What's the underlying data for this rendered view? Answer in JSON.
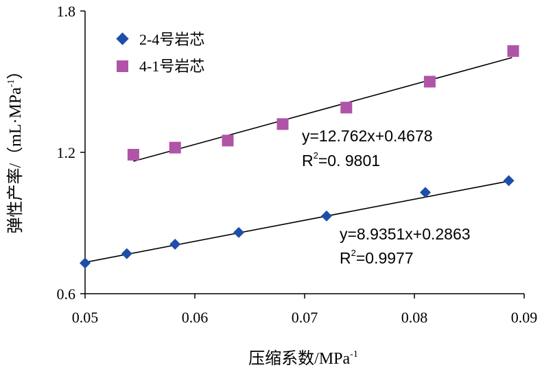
{
  "chart_data": {
    "type": "scatter",
    "xlabel": "压缩系数/MPa",
    "xlabel_sup": "-1",
    "ylabel": "弹性产率/（mL·MPa",
    "ylabel_sup": "-1",
    "ylabel_close": "）",
    "xlim": [
      0.05,
      0.09
    ],
    "ylim": [
      0.6,
      1.8
    ],
    "x_ticks": [
      0.05,
      0.06,
      0.07,
      0.08,
      0.09
    ],
    "x_tick_labels": [
      "0.05",
      "0.06",
      "0.07",
      "0.08",
      "0.09"
    ],
    "y_ticks": [
      0.6,
      1.2,
      1.8
    ],
    "y_tick_labels": [
      "0.6",
      "1.2",
      "1.8"
    ],
    "series": [
      {
        "name": "2-4号岩芯",
        "marker": "diamond",
        "color": "#1F4EA8",
        "x": [
          0.05,
          0.0538,
          0.0582,
          0.064,
          0.072,
          0.081,
          0.0886
        ],
        "y": [
          0.73,
          0.77,
          0.81,
          0.86,
          0.93,
          1.03,
          1.08
        ],
        "fit": {
          "slope": 8.9351,
          "intercept": 0.2863,
          "x_range": [
            0.05,
            0.0886
          ]
        },
        "equation": "y=8.9351x+0.2863",
        "r2_prefix": "R",
        "r2_value": "=0.9977"
      },
      {
        "name": "4-1号岩芯",
        "marker": "square",
        "color": "#B054A8",
        "x": [
          0.0544,
          0.0582,
          0.063,
          0.068,
          0.0738,
          0.0814,
          0.089
        ],
        "y": [
          1.19,
          1.22,
          1.25,
          1.32,
          1.39,
          1.5,
          1.63
        ],
        "fit": {
          "slope": 12.762,
          "intercept": 0.4678,
          "x_range": [
            0.0544,
            0.0889
          ]
        },
        "equation": "y=12.762x+0.4678",
        "r2_prefix": "R",
        "r2_value": "=0. 9801"
      }
    ]
  }
}
